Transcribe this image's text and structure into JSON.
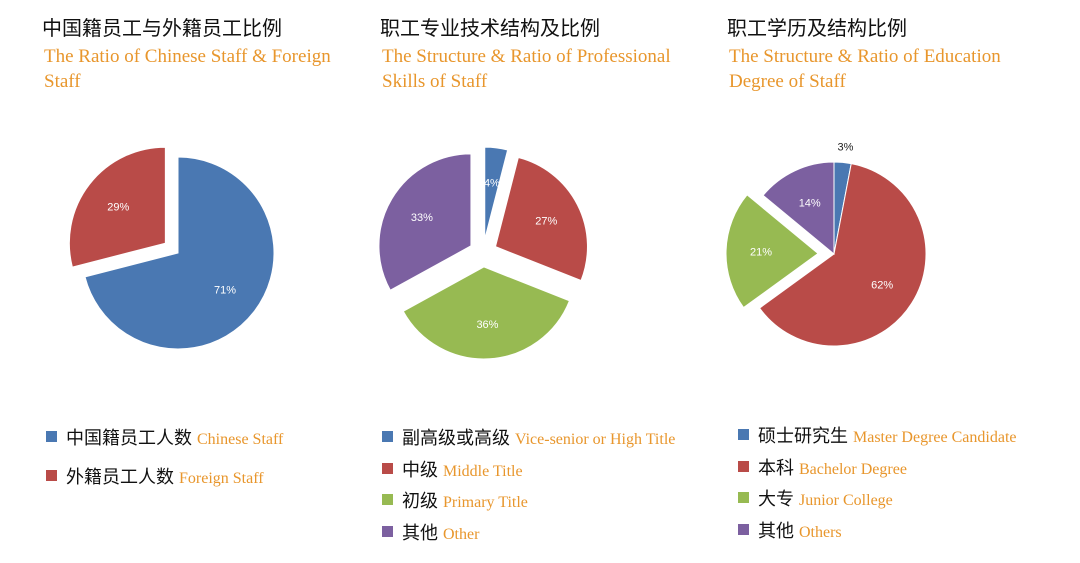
{
  "colors": {
    "blue": "#4a78b2",
    "red": "#b94b48",
    "green": "#97ba52",
    "purple": "#7c60a0",
    "title_en": "#e8962c",
    "label_light": "#ffffff",
    "label_dark": "#222222"
  },
  "panels": [
    {
      "title_cn": "中国籍员工与外籍员工比例",
      "title_en": "The Ratio of Chinese Staff & Foreign Staff",
      "legend": [
        {
          "cn": "中国籍员工人数",
          "en": "Chinese Staff",
          "color": "#4a78b2"
        },
        {
          "cn": "外籍员工人数",
          "en": "Foreign Staff",
          "color": "#b94b48"
        }
      ]
    },
    {
      "title_cn": "职工专业技术结构及比例",
      "title_en": "The Structure & Ratio of Professional Skills of Staff",
      "legend": [
        {
          "cn": "副高级或高级",
          "en": "Vice-senior or High Title",
          "color": "#4a78b2"
        },
        {
          "cn": "中级",
          "en": "Middle Title",
          "color": "#b94b48"
        },
        {
          "cn": "初级",
          "en": "Primary Title",
          "color": "#97ba52"
        },
        {
          "cn": "其他",
          "en": "Other",
          "color": "#7c60a0"
        }
      ]
    },
    {
      "title_cn": "职工学历及结构比例",
      "title_en": "The Structure & Ratio of Education Degree of Staff",
      "legend": [
        {
          "cn": "硕士研究生",
          "en": "Master Degree Candidate",
          "color": "#4a78b2"
        },
        {
          "cn": "本科",
          "en": "Bachelor Degree",
          "color": "#b94b48"
        },
        {
          "cn": "大专",
          "en": "Junior College",
          "color": "#97ba52"
        },
        {
          "cn": "其他",
          "en": "Others",
          "color": "#7c60a0"
        }
      ]
    }
  ],
  "chart_data": [
    {
      "type": "pie",
      "title": "中国籍员工与外籍员工比例 The Ratio of Chinese Staff & Foreign Staff",
      "categories": [
        "Chinese Staff",
        "Foreign Staff"
      ],
      "values": [
        71,
        29
      ],
      "labels": [
        "71%",
        "29%"
      ],
      "colors": [
        "#4a78b2",
        "#b94b48"
      ],
      "exploded": [
        "Foreign Staff"
      ]
    },
    {
      "type": "pie",
      "title": "职工专业技术结构及比例 The Structure & Ratio of Professional Skills of Staff",
      "categories": [
        "Vice-senior or High Title",
        "Middle Title",
        "Primary Title",
        "Other"
      ],
      "values": [
        4,
        27,
        36,
        33
      ],
      "labels": [
        "4%",
        "27%",
        "36%",
        "33%"
      ],
      "colors": [
        "#4a78b2",
        "#b94b48",
        "#97ba52",
        "#7c60a0"
      ],
      "exploded": [
        "Vice-senior or High Title",
        "Middle Title",
        "Primary Title",
        "Other"
      ]
    },
    {
      "type": "pie",
      "title": "职工学历及结构比例 The Structure & Ratio of Education Degree of Staff",
      "categories": [
        "Master Degree Candidate",
        "Bachelor Degree",
        "Junior College",
        "Others"
      ],
      "values": [
        3,
        62,
        21,
        14
      ],
      "labels": [
        "3%",
        "62%",
        "21%",
        "14%"
      ],
      "colors": [
        "#4a78b2",
        "#b94b48",
        "#97ba52",
        "#7c60a0"
      ],
      "exploded": [
        "Junior College"
      ]
    }
  ]
}
